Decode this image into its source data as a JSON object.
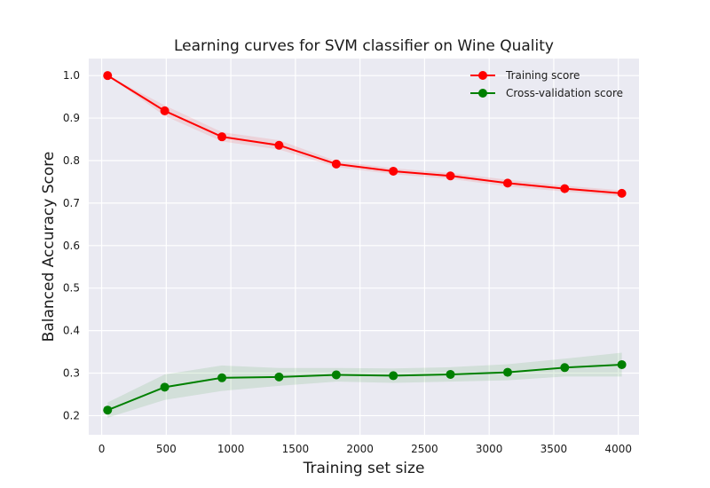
{
  "chart_data": {
    "type": "line",
    "title": "Learning curves for SVM classifier on Wine Quality",
    "xlabel": "Training set size",
    "ylabel": "Balanced Accuracy Score",
    "xlim": [
      -100,
      4160
    ],
    "ylim": [
      0.155,
      1.04
    ],
    "xticks": [
      0,
      500,
      1000,
      1500,
      2000,
      2500,
      3000,
      3500,
      4000
    ],
    "yticks": [
      0.2,
      0.3,
      0.4,
      0.5,
      0.6,
      0.7,
      0.8,
      0.9,
      1.0
    ],
    "xtick_labels": [
      "0",
      "500",
      "1000",
      "1500",
      "2000",
      "2500",
      "3000",
      "3500",
      "4000"
    ],
    "ytick_labels": [
      "0.2",
      "0.3",
      "0.4",
      "0.5",
      "0.6",
      "0.7",
      "0.8",
      "0.9",
      "1.0"
    ],
    "grid": true,
    "legend_position": "upper right",
    "x": [
      46,
      488,
      931,
      1373,
      1816,
      2258,
      2700,
      3143,
      3585,
      4027
    ],
    "series": [
      {
        "name": "Training score",
        "color": "#ff0000",
        "values": [
          1.0,
          0.917,
          0.856,
          0.836,
          0.792,
          0.775,
          0.764,
          0.747,
          0.734,
          0.723
        ],
        "band_lower": [
          1.0,
          0.905,
          0.845,
          0.826,
          0.785,
          0.768,
          0.757,
          0.739,
          0.727,
          0.716
        ],
        "band_upper": [
          1.0,
          0.93,
          0.867,
          0.848,
          0.799,
          0.782,
          0.771,
          0.755,
          0.741,
          0.73
        ]
      },
      {
        "name": "Cross-validation score",
        "color": "#008000",
        "values": [
          0.213,
          0.267,
          0.289,
          0.291,
          0.296,
          0.294,
          0.297,
          0.302,
          0.313,
          0.32
        ],
        "band_lower": [
          0.195,
          0.237,
          0.258,
          0.27,
          0.28,
          0.277,
          0.28,
          0.283,
          0.292,
          0.292
        ],
        "band_upper": [
          0.231,
          0.297,
          0.318,
          0.312,
          0.312,
          0.311,
          0.314,
          0.321,
          0.334,
          0.348
        ]
      }
    ]
  }
}
